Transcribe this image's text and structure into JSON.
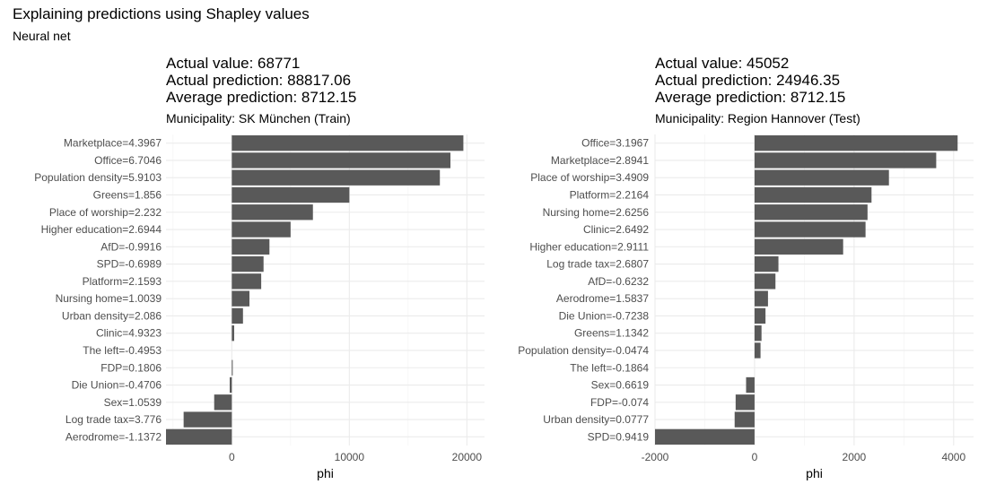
{
  "figure": {
    "title": "Explaining predictions using Shapley values",
    "subtitle": "Neural net"
  },
  "panels": [
    {
      "actual_value": "Actual value: 68771",
      "actual_prediction": "Actual prediction: 88817.06",
      "average_prediction": "Average prediction: 8712.15",
      "municipality": "Municipality: SK München (Train)"
    },
    {
      "actual_value": "Actual value: 45052",
      "actual_prediction": "Actual prediction: 24946.35",
      "average_prediction": "Average prediction: 8712.15",
      "municipality": "Municipality: Region Hannover (Test)"
    }
  ],
  "chart_data": [
    {
      "type": "bar",
      "orientation": "horizontal",
      "categories": [
        "Marketplace=4.3967",
        "Office=6.7046",
        "Population density=5.9103",
        "Greens=1.856",
        "Place of worship=2.232",
        "Higher education=2.6944",
        "AfD=-0.9916",
        "SPD=-0.6989",
        "Platform=2.1593",
        "Nursing home=1.0039",
        "Urban density=2.086",
        "Clinic=4.9323",
        "The left=-0.4953",
        "FDP=0.1806",
        "Die Union=-0.4706",
        "Sex=1.0539",
        "Log trade tax=3.776",
        "Aerodrome=-1.1372"
      ],
      "values": [
        19700,
        18600,
        17700,
        10000,
        6900,
        5000,
        3200,
        2700,
        2500,
        1500,
        950,
        200,
        0,
        60,
        -180,
        -1500,
        -4100,
        -5600
      ],
      "xlabel": "phi",
      "xlim": [
        -5600,
        21500
      ],
      "xticks": [
        0,
        10000,
        20000
      ],
      "grid": true,
      "bar_color": "#595959"
    },
    {
      "type": "bar",
      "orientation": "horizontal",
      "categories": [
        "Office=3.1967",
        "Marketplace=2.8941",
        "Place of worship=3.4909",
        "Platform=2.2164",
        "Nursing home=2.6256",
        "Clinic=2.6492",
        "Higher education=2.9111",
        "Log trade tax=2.6807",
        "AfD=-0.6232",
        "Aerodrome=1.5837",
        "Die Union=-0.7238",
        "Greens=1.1342",
        "Population density=-0.0474",
        "The left=-0.1864",
        "Sex=0.6619",
        "FDP=-0.074",
        "Urban density=0.0777",
        "SPD=0.9419"
      ],
      "values": [
        4080,
        3650,
        2700,
        2350,
        2270,
        2230,
        1780,
        480,
        420,
        270,
        220,
        140,
        120,
        0,
        -170,
        -380,
        -400,
        -2000
      ],
      "xlabel": "phi",
      "xlim": [
        -2000,
        4400
      ],
      "xticks": [
        -2000,
        0,
        2000,
        4000
      ],
      "grid": true,
      "bar_color": "#595959"
    }
  ]
}
